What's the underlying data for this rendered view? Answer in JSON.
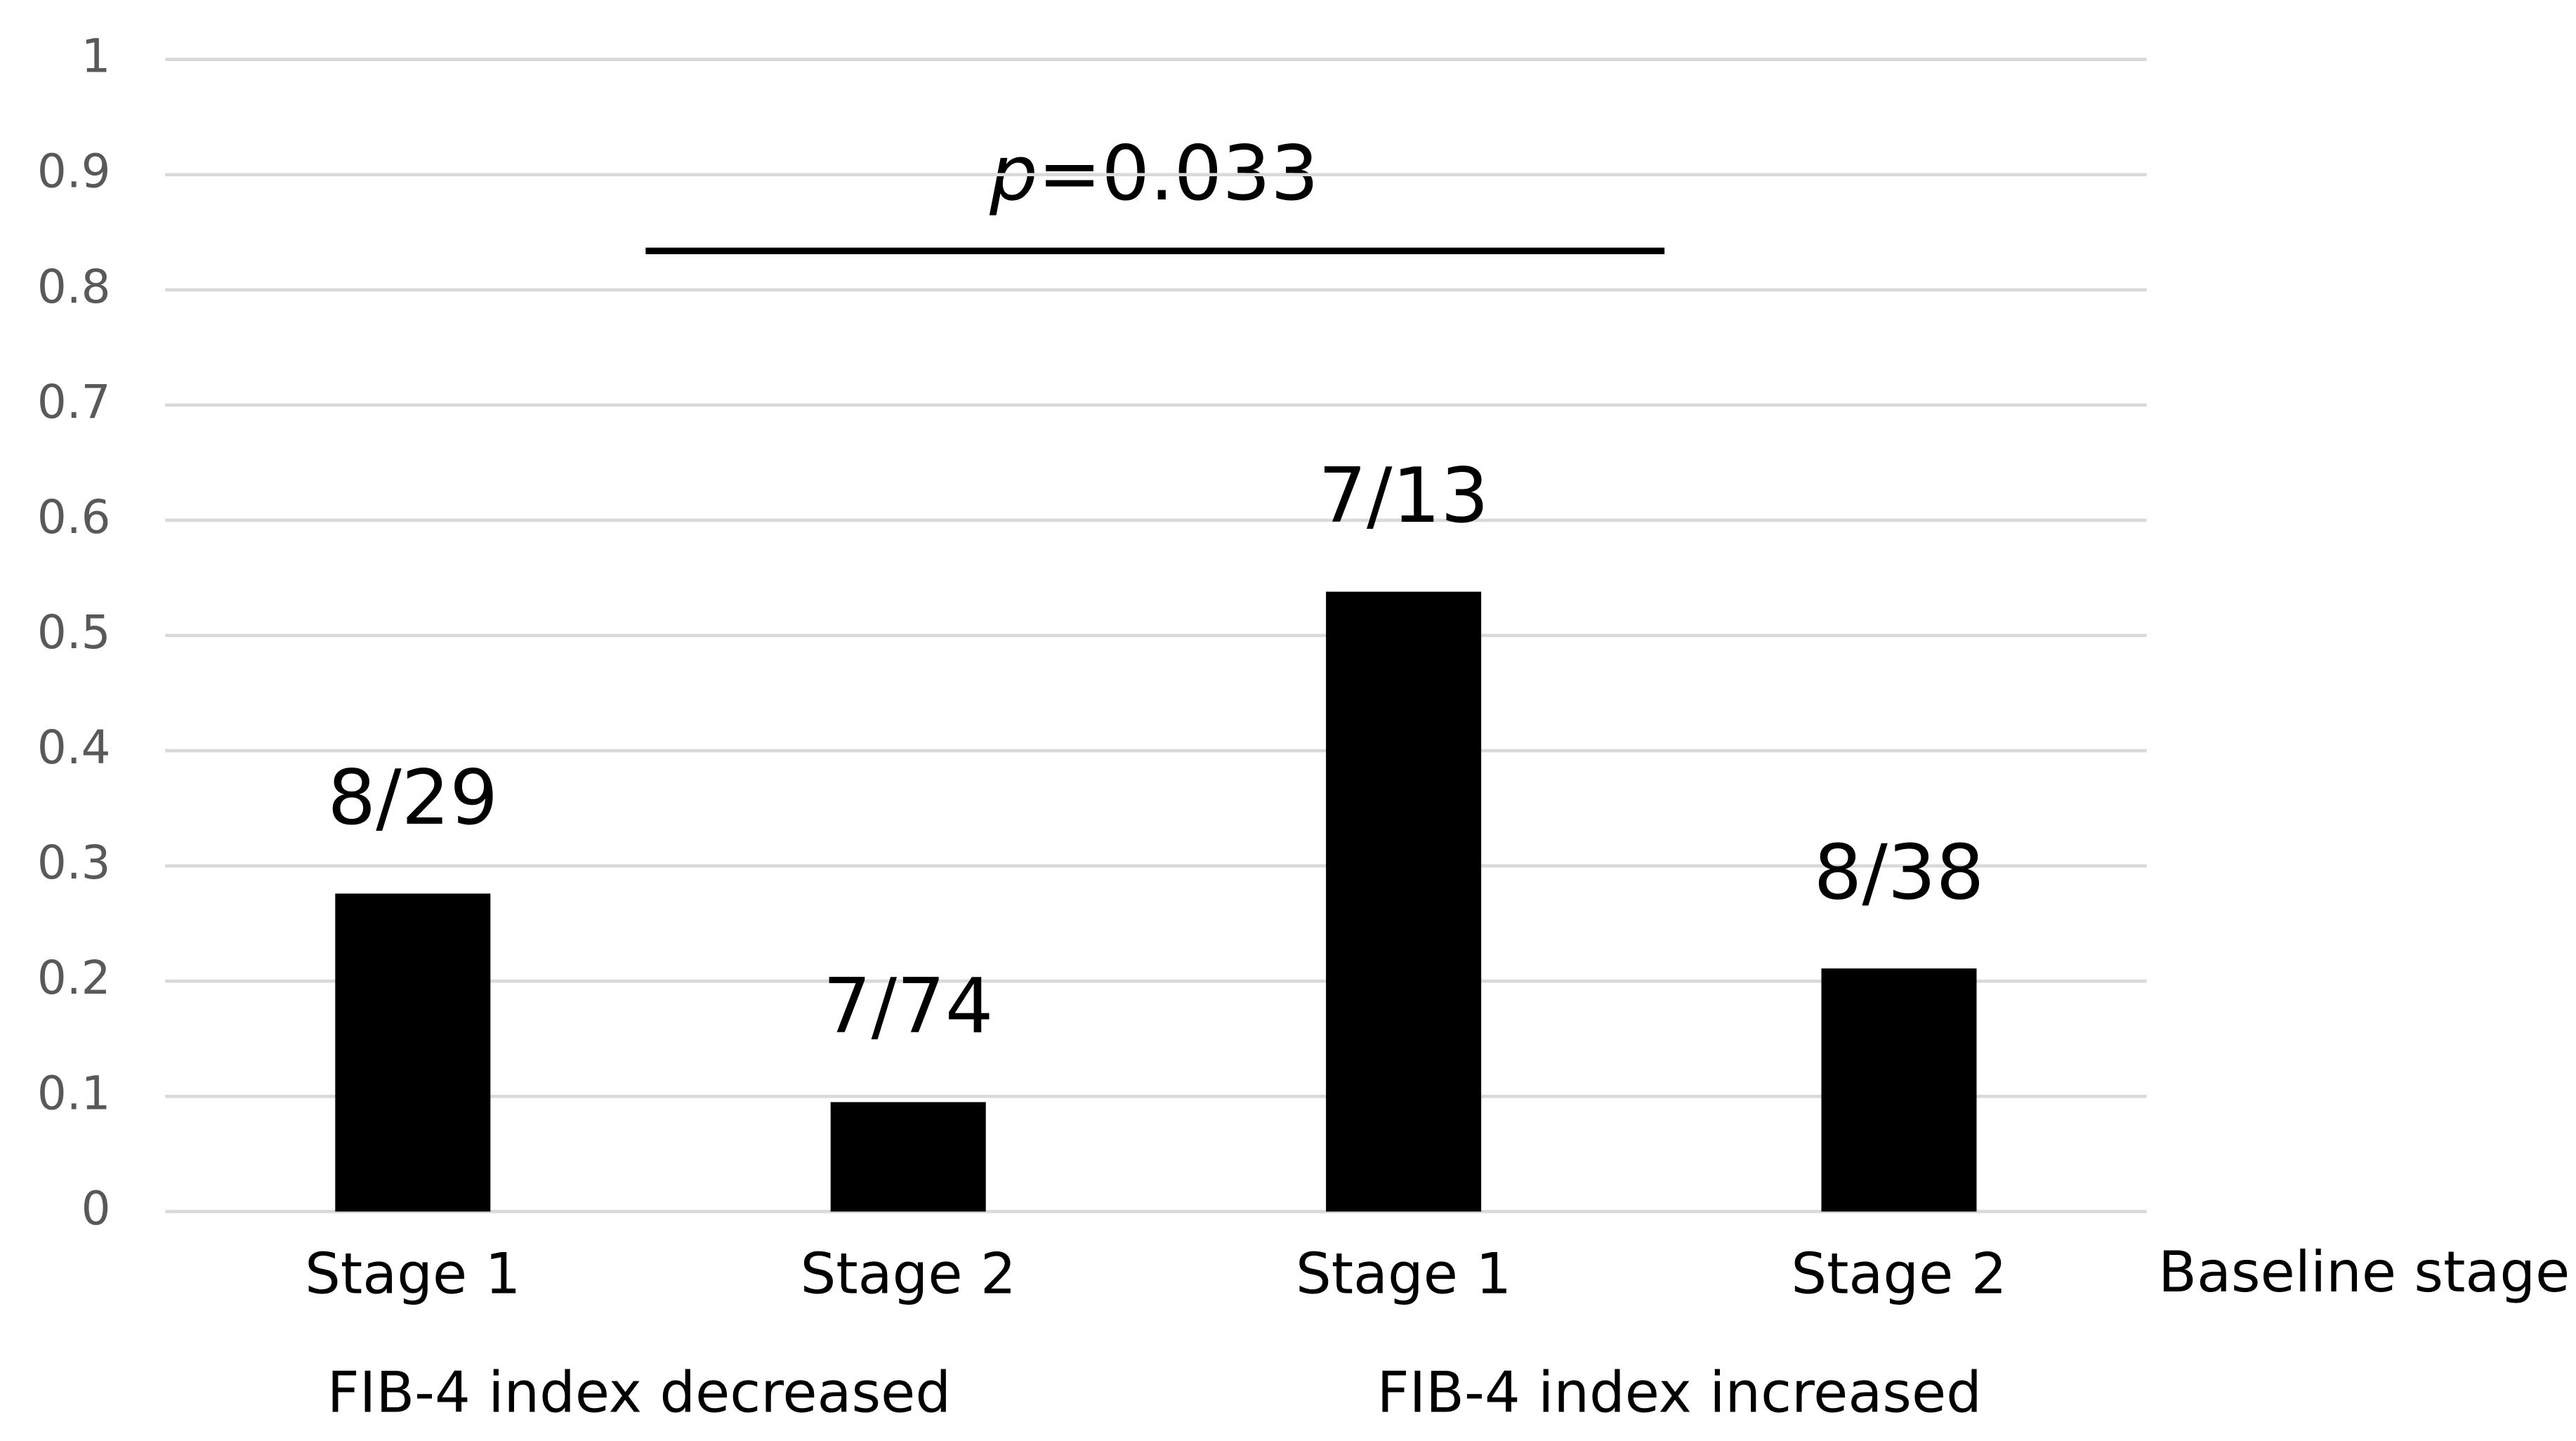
{
  "chart_data": {
    "type": "bar",
    "categories": [
      "Stage 1",
      "Stage 2",
      "Stage 1",
      "Stage 2"
    ],
    "values": [
      0.276,
      0.095,
      0.538,
      0.211
    ],
    "value_labels": [
      "8/29",
      "7/74",
      "7/13",
      "8/38"
    ],
    "color": "#000000",
    "groups": [
      "FIB-4 index decreased",
      "FIB-4 index increased"
    ],
    "x_label": "Baseline stage",
    "annotation": {
      "italic": "p",
      "text": "=0.033"
    },
    "ylim": [
      0,
      1
    ],
    "yticks": [
      0,
      0.1,
      0.2,
      0.3,
      0.4,
      0.5,
      0.6,
      0.7,
      0.8,
      0.9,
      1
    ],
    "grid": true
  }
}
